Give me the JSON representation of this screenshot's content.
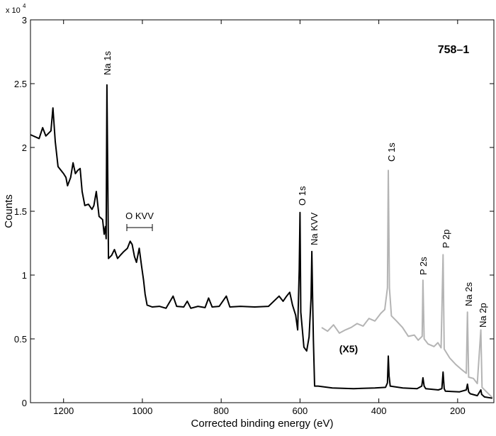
{
  "chart_data": {
    "type": "line",
    "title": "758–1",
    "xlabel": "Corrected binding energy (eV)",
    "ylabel": "Counts",
    "y_multiplier": "x 10",
    "y_multiplier_exp": "4",
    "scale_note": "(X5)",
    "annotations": [
      "Na 1s",
      "O KVV",
      "O 1s",
      "Na KVV",
      "C 1s",
      "P 2s",
      "P 2p",
      "Na 2s",
      "Na 2p"
    ],
    "xlim": [
      1284,
      108
    ],
    "ylim": [
      0,
      30000
    ],
    "xticks": [
      1200,
      1000,
      800,
      600,
      400,
      200
    ],
    "yticks": [
      0,
      {
        "value": 5000,
        "label": "0.5"
      },
      {
        "value": 10000,
        "label": "1"
      },
      {
        "value": 15000,
        "label": "1.5"
      },
      {
        "value": 20000,
        "label": "2"
      },
      {
        "value": 25000,
        "label": "2.5"
      },
      {
        "value": 30000,
        "label": "3"
      }
    ],
    "series": [
      {
        "color": "#000000",
        "x": [
          1284,
          1262,
          1253,
          1245,
          1232,
          1227,
          1221,
          1214,
          1200,
          1194,
          1190,
          1182,
          1176,
          1170,
          1164,
          1158,
          1153,
          1146,
          1137,
          1128,
          1123,
          1117,
          1110,
          1101,
          1097,
          1094,
          1092,
          1090,
          1088,
          1086,
          1078,
          1071,
          1063,
          1056,
          1047,
          1038,
          1031,
          1026,
          1020,
          1015,
          1008,
          1002,
          997,
          993,
          988,
          975,
          957,
          940,
          922,
          913,
          895,
          886,
          877,
          859,
          841,
          832,
          823,
          805,
          787,
          778,
          751,
          715,
          680,
          653,
          643,
          634,
          626,
          619,
          611,
          606,
          602,
          600,
          598,
          590,
          583,
          577,
          572,
          570,
          568,
          566,
          563,
          554,
          518,
          464,
          410,
          383,
          378,
          376,
          374,
          371,
          339,
          303,
          291,
          288,
          285,
          281,
          249,
          240,
          237,
          234,
          231,
          195,
          178,
          175,
          172,
          168,
          150,
          143,
          141,
          139,
          132,
          112
        ],
        "values": [
          21000,
          20700,
          21550,
          20900,
          21300,
          23100,
          20450,
          18500,
          17950,
          17650,
          17000,
          17650,
          18800,
          17950,
          18200,
          18350,
          16550,
          15450,
          15550,
          15150,
          15450,
          16550,
          14600,
          14350,
          13200,
          13800,
          12850,
          24900,
          18200,
          11300,
          11550,
          12000,
          11300,
          11550,
          11850,
          12100,
          12650,
          12400,
          11450,
          11000,
          12100,
          10700,
          9600,
          8500,
          7650,
          7500,
          7550,
          7400,
          8350,
          7550,
          7500,
          7950,
          7400,
          7550,
          7450,
          8200,
          7500,
          7550,
          8350,
          7500,
          7550,
          7500,
          7550,
          8350,
          7950,
          8350,
          8650,
          7650,
          6850,
          5700,
          10450,
          14900,
          7100,
          4350,
          4050,
          5150,
          8200,
          11850,
          8200,
          4900,
          1300,
          1300,
          1150,
          1100,
          1150,
          1200,
          1550,
          3650,
          2100,
          1300,
          1150,
          1100,
          1300,
          1950,
          1300,
          1100,
          1000,
          1100,
          2400,
          1100,
          900,
          850,
          1000,
          1450,
          850,
          700,
          550,
          900,
          1000,
          650,
          450,
          350
        ]
      },
      {
        "color": "#b4b4b4",
        "x": [
          545,
          530,
          515,
          500,
          485,
          470,
          455,
          440,
          425,
          410,
          395,
          385,
          378,
          376,
          373,
          368,
          355,
          340,
          325,
          310,
          300,
          290,
          288,
          285,
          275,
          260,
          250,
          242,
          237,
          234,
          220,
          205,
          190,
          178,
          175,
          172,
          160,
          150,
          141,
          138,
          125,
          112
        ],
        "values": [
          5890,
          5600,
          6100,
          5450,
          5700,
          5900,
          6200,
          6000,
          6600,
          6400,
          7000,
          7300,
          9000,
          18200,
          9000,
          6800,
          6400,
          5900,
          5200,
          5300,
          4900,
          5200,
          9600,
          5000,
          4600,
          4400,
          4700,
          4300,
          11600,
          4200,
          3500,
          3000,
          2600,
          2300,
          7100,
          2000,
          1900,
          1500,
          5700,
          1200,
          800,
          400
        ]
      }
    ]
  }
}
